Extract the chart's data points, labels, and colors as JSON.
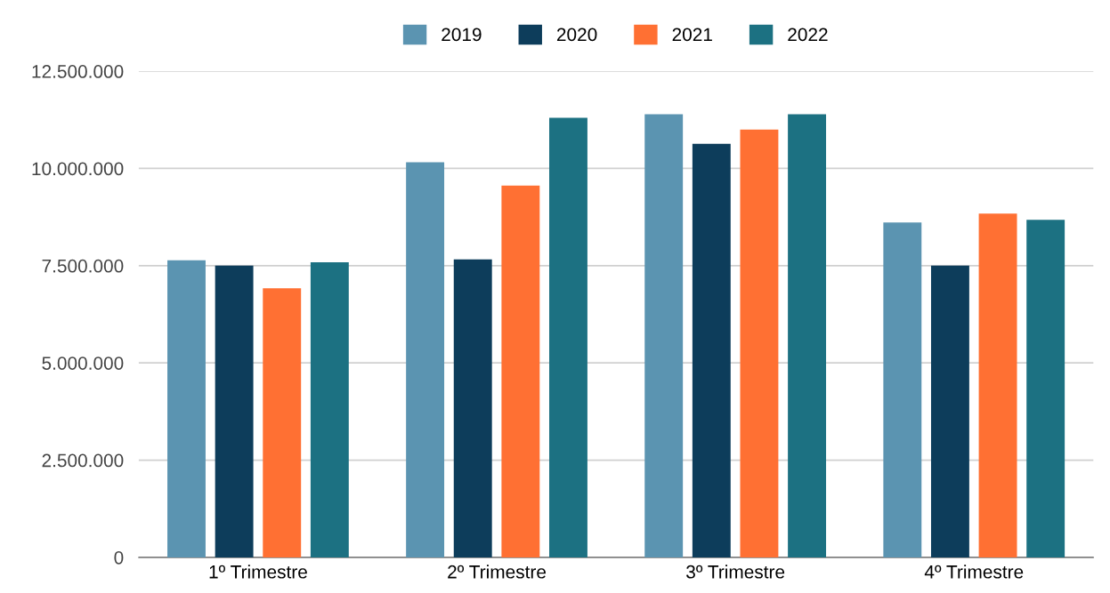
{
  "chart_data": {
    "type": "bar",
    "categories": [
      "1º Trimestre",
      "2º Trimestre",
      "3º Trimestre",
      "4º Trimestre"
    ],
    "series": [
      {
        "name": "2019",
        "color": "#5b94b1",
        "values": [
          7640000,
          10160000,
          11390000,
          8610000
        ]
      },
      {
        "name": "2020",
        "color": "#0d3d5b",
        "values": [
          7500000,
          7660000,
          10630000,
          7500000
        ]
      },
      {
        "name": "2021",
        "color": "#ff7033",
        "values": [
          6920000,
          9560000,
          11000000,
          8840000
        ]
      },
      {
        "name": "2022",
        "color": "#1c7182",
        "values": [
          7590000,
          11300000,
          11390000,
          8680000
        ]
      }
    ],
    "ylim": [
      0,
      12500000
    ],
    "yticks": [
      {
        "value": 0,
        "label": "0"
      },
      {
        "value": 2500000,
        "label": "2.500.000"
      },
      {
        "value": 5000000,
        "label": "5.000.000"
      },
      {
        "value": 7500000,
        "label": "7.500.000"
      },
      {
        "value": 10000000,
        "label": "10.000.000"
      },
      {
        "value": 12500000,
        "label": "12.500.000"
      }
    ],
    "grid": "y",
    "legend": "top"
  }
}
